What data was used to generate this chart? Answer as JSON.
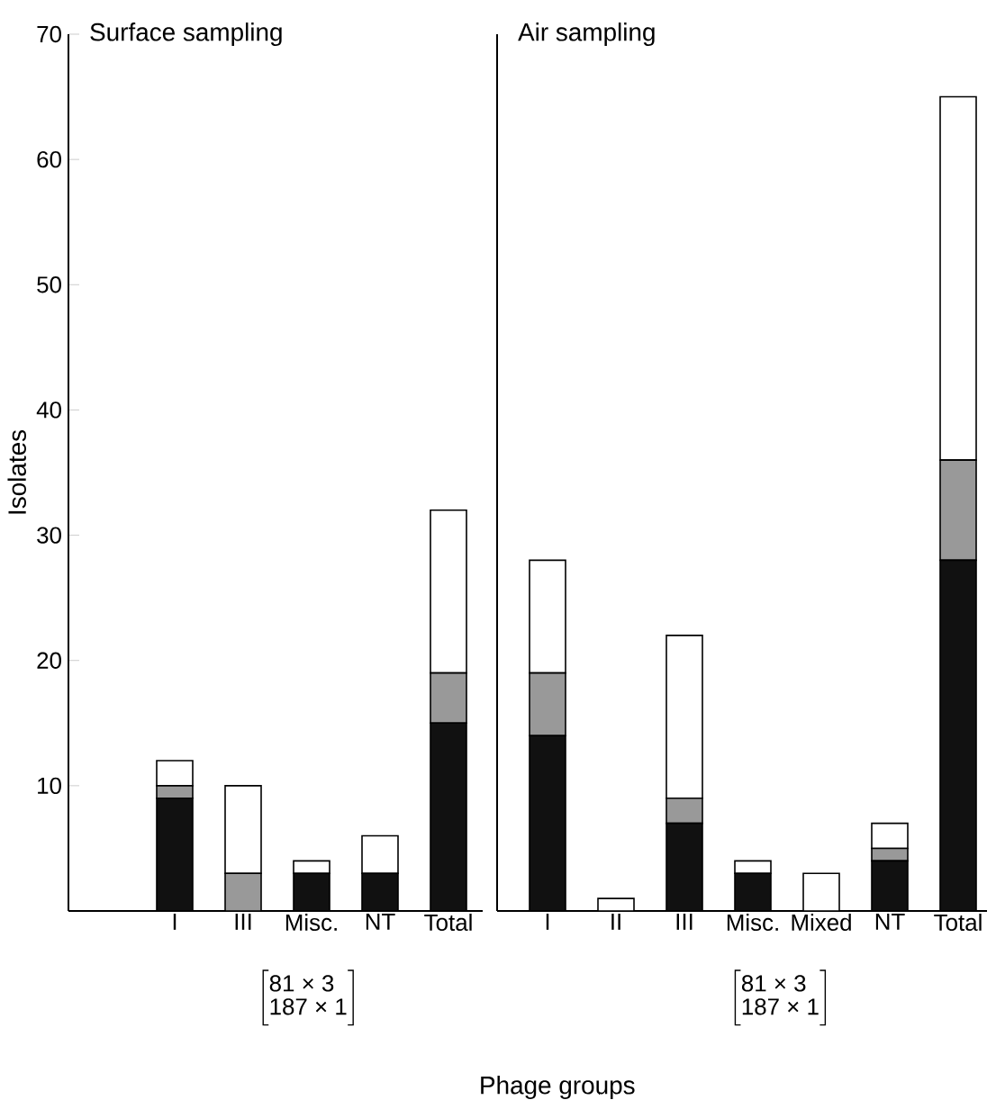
{
  "chart_data": [
    {
      "type": "bar",
      "stacked": true,
      "title": "Surface sampling",
      "ylabel": "Isolates",
      "xlabel": "Phage groups",
      "categories": [
        "I",
        "III",
        "Misc.",
        "NT",
        "Total"
      ],
      "series": [
        {
          "color": "#111111",
          "values": [
            9,
            0,
            3,
            3,
            15
          ]
        },
        {
          "color": "#999999",
          "values": [
            1,
            3,
            0,
            0,
            4
          ]
        },
        {
          "color": "#ffffff",
          "values": [
            2,
            7,
            1,
            3,
            13
          ]
        }
      ],
      "ylim": [
        0,
        70
      ],
      "yticks": [
        10,
        20,
        30,
        40,
        50,
        60,
        70
      ],
      "annotations": [
        "81 × 3",
        "187 × 1"
      ]
    },
    {
      "type": "bar",
      "stacked": true,
      "title": "Air sampling",
      "categories": [
        "I",
        "II",
        "III",
        "Misc.",
        "Mixed",
        "NT",
        "Total"
      ],
      "series": [
        {
          "color": "#111111",
          "values": [
            14,
            0,
            7,
            3,
            0,
            4,
            28
          ]
        },
        {
          "color": "#999999",
          "values": [
            5,
            0,
            2,
            0,
            0,
            1,
            8
          ]
        },
        {
          "color": "#ffffff",
          "values": [
            9,
            1,
            13,
            1,
            3,
            2,
            29
          ]
        }
      ],
      "ylim": [
        0,
        70
      ],
      "tick_labels": "x",
      "annotations": [
        "81 × 3",
        "187 × 1"
      ]
    }
  ]
}
